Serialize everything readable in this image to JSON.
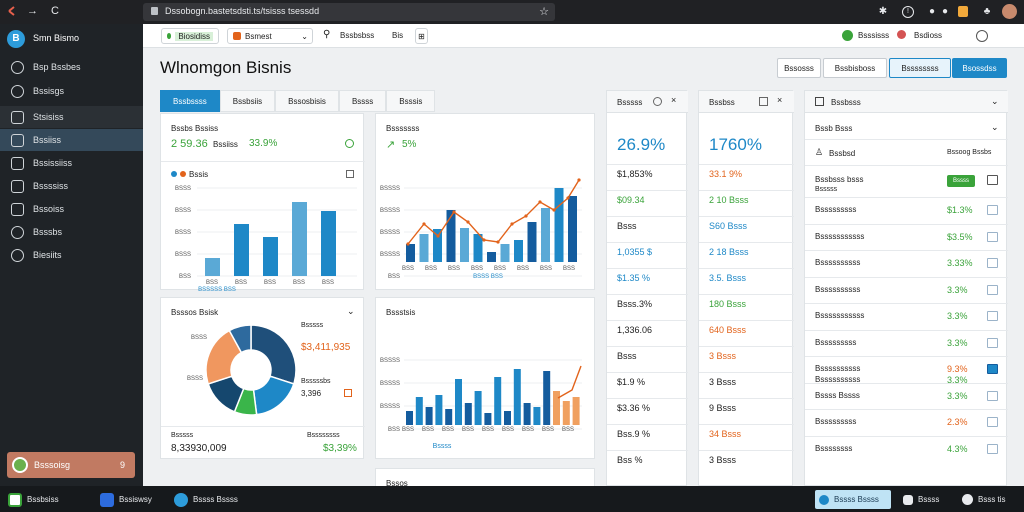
{
  "browser": {
    "url": "Dssobogn.bastetsdsti.ts/tsisss tsessdd",
    "back": "←",
    "forward": "→",
    "reload": "C",
    "star": "☆"
  },
  "sidebar": {
    "app_name": "Smn Bismo",
    "items": [
      {
        "label": "Bsp Bssbes"
      },
      {
        "label": "Bssisgs"
      },
      {
        "label": "Stsisiss"
      },
      {
        "label": "Bssiiss"
      },
      {
        "label": "Bssissiiss"
      },
      {
        "label": "Bssssiss"
      },
      {
        "label": "Bssoiss"
      },
      {
        "label": "Bsssbs"
      },
      {
        "label": "Biesiits"
      }
    ],
    "user_label": "Bsssoisg",
    "user_badge": "9"
  },
  "toolbar": {
    "chip_label": "Biosidiss",
    "select_label": "Bsmest",
    "filter_label": "Bssbsbss",
    "filter_mini": "Bis",
    "right_btn1": "Bsssisss",
    "right_btn2": "Bsdioss"
  },
  "header": {
    "title": "Wlnomgon Bisnis",
    "btn1": "Bssosss",
    "btn2": "Bssbisboss",
    "btn3": "Bssssssss",
    "btn4": "Bsossdss"
  },
  "tabs": [
    "Bssbssss",
    "Bssbsiis",
    "Bssosbisis",
    "Bssss",
    "Bsssis"
  ],
  "card1": {
    "title": "Bssbs Bssiss",
    "val1": "2 59.36",
    "val1_label": "Bssiiss",
    "val2": "33.9%",
    "legend": "Bssis",
    "y_labels": [
      "BSSS",
      "BSSS",
      "BSSS",
      "BSSS",
      "BSS"
    ],
    "x_labels": [
      "BSS",
      "BSS",
      "BSS",
      "BSS",
      "BSS"
    ],
    "x_title": "BSSSSS BSS"
  },
  "card2": {
    "title": "Bsssssss",
    "val": "5%",
    "y_labels": [
      "BSSSS",
      "BSSSS",
      "BSSSS",
      "BSSSS",
      "BSS"
    ],
    "x_labels": [
      "BSS",
      "BSS",
      "BSS",
      "BSS",
      "BSS",
      "BSS",
      "BSS",
      "BSS"
    ],
    "x_title": "BSSS BSS"
  },
  "card3": {
    "title": "Bsssos Bsisk",
    "label1": "Bsssss",
    "val1": "$3,411,935",
    "label2": "Bsssssbs",
    "val2": "3,396",
    "left_labels": [
      "BSSS",
      "BSSS"
    ],
    "foot_left_label": "Bsssss",
    "foot_left_val": "8,33930,009",
    "foot_right_label": "Bssssssss",
    "foot_right_val": "$3,39%"
  },
  "card4": {
    "title": "Bssstsis",
    "y_labels": [
      "BSSSS",
      "BSSSS",
      "BSSSS",
      "BSS"
    ],
    "x_labels": [
      "BSS",
      "BSS",
      "BSS",
      "BSS",
      "BSS",
      "BSS",
      "BSS",
      "BSS",
      "BSS"
    ],
    "x_title": "Bssss"
  },
  "card5": {
    "title": "Bssos"
  },
  "kpi1": {
    "title": "Bsssss",
    "big": "26.9%",
    "rows": [
      {
        "text": "$1,853%",
        "cls": ""
      },
      {
        "text": "$09.34",
        "cls": "green"
      },
      {
        "text": "Bsss",
        "cls": ""
      },
      {
        "text": "1,0355  $",
        "cls": "teal"
      },
      {
        "text": "$1.35 %",
        "cls": "teal"
      },
      {
        "text": "Bsss.3%",
        "cls": ""
      },
      {
        "text": "1,336.06",
        "cls": ""
      },
      {
        "text": "Bsss",
        "cls": ""
      },
      {
        "text": "$1.9 %",
        "cls": ""
      },
      {
        "text": "$3.36 %",
        "cls": ""
      },
      {
        "text": "Bss.9 %",
        "cls": ""
      },
      {
        "text": "Bss %",
        "cls": ""
      }
    ]
  },
  "kpi2": {
    "title": "Bssbss",
    "big": "1760%",
    "rows": [
      {
        "text": "33.1 9%",
        "cls": "orange"
      },
      {
        "text": "2 10 Bsss",
        "cls": "green"
      },
      {
        "text": "S60 Bsss",
        "cls": "teal"
      },
      {
        "text": "2 18 Bsss",
        "cls": "teal"
      },
      {
        "text": "3.5. Bsss",
        "cls": "teal"
      },
      {
        "text": "180 Bsss",
        "cls": "green"
      },
      {
        "text": "640 Bsss",
        "cls": "orange"
      },
      {
        "text": "3 Bsss",
        "cls": "orange"
      },
      {
        "text": "3 Bsss",
        "cls": ""
      },
      {
        "text": "9 Bsss",
        "cls": ""
      },
      {
        "text": "34 Bsss",
        "cls": "orange"
      },
      {
        "text": "3 Bsss",
        "cls": ""
      }
    ]
  },
  "panel": {
    "title": "Bssbsss",
    "sub_title": "Bssb Bsss",
    "section": "Bssbsd",
    "section_right": "Bssoog Bssbs",
    "first_row": "Bssbsss bsss",
    "first_row_sub": "Bsssss",
    "first_badge": "Bssss",
    "rows": [
      {
        "name": "Bsssssssss",
        "val": "$1.3%",
        "cls": "green"
      },
      {
        "name": "Bsssssssssss",
        "val": "$3.5%",
        "cls": "green"
      },
      {
        "name": "Bssssssssss",
        "val": "3.33%",
        "cls": "green"
      },
      {
        "name": "Bssssssssss",
        "val": "3.3%",
        "cls": "green"
      },
      {
        "name": "Bsssssssssss",
        "val": "3.3%",
        "cls": "green"
      },
      {
        "name": "Bsssssssss",
        "val": "3.3%",
        "cls": "green"
      },
      {
        "name": "Bssssssssss",
        "val": "9.3%",
        "cls": "orange",
        "sub": "Bssssssssss",
        "val2": "3.3%"
      },
      {
        "name": "Bssss Bssss",
        "val": "3.3%",
        "cls": "green"
      },
      {
        "name": "Bsssssssss",
        "val": "2.3%",
        "cls": "orange"
      },
      {
        "name": "Bssssssss",
        "val": "4.3%",
        "cls": "green"
      }
    ]
  },
  "taskbar": {
    "t1": "Bssbsiss",
    "t2": "Bssiswsy",
    "t3": "Bssss Bssss",
    "t4": "Bssss Bssss",
    "t5": "Bssss",
    "t6": "Bsss tis"
  },
  "colors": {
    "accent": "#1e88c7",
    "bar_blue": "#1e88c7",
    "bar_dark": "#145c9e",
    "bar_light": "#5aa9d6",
    "bar_orange": "#f0a060",
    "line_orange": "#e2631b",
    "pie": [
      "#1f4f7a",
      "#1e88c7",
      "#3ab54a",
      "#15476e",
      "#f0975f",
      "#2e6a9e"
    ]
  }
}
